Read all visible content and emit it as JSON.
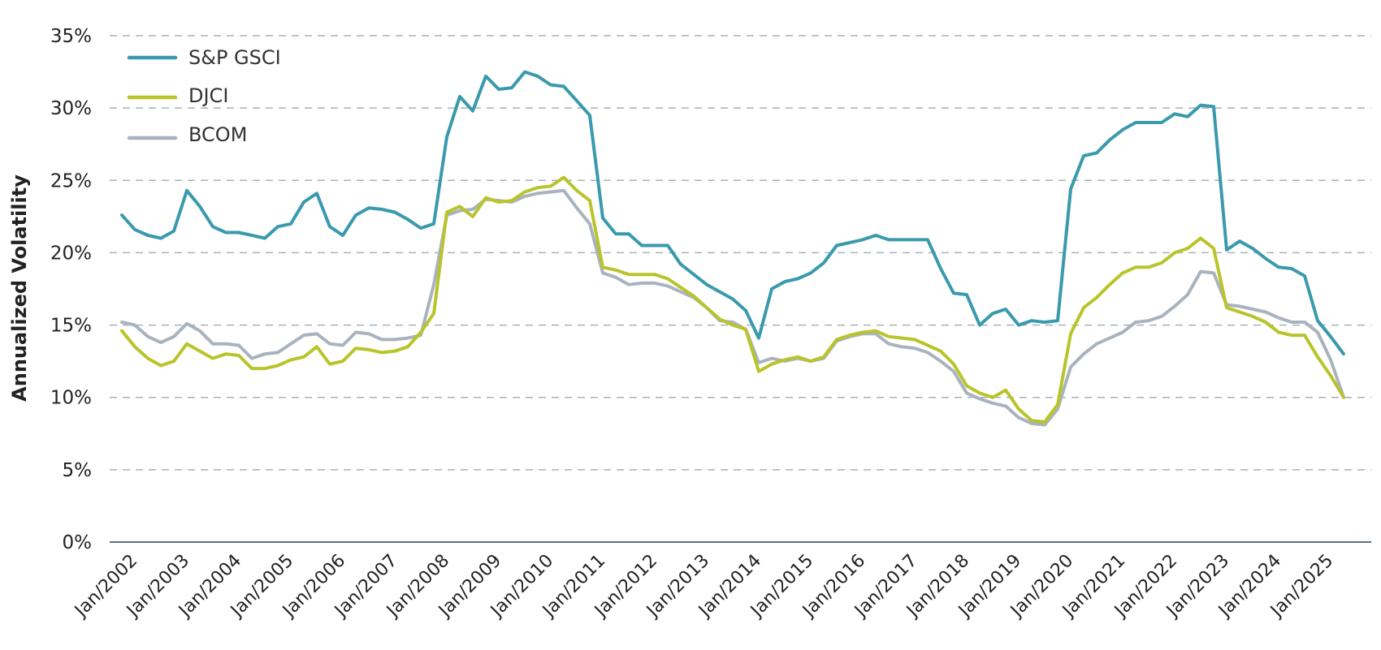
{
  "chart_data": {
    "type": "line",
    "title": "",
    "xlabel": "",
    "ylabel": "Annualized Volatility",
    "ylim": [
      0,
      35
    ],
    "yticks": [
      "0%",
      "5%",
      "10%",
      "15%",
      "20%",
      "25%",
      "30%",
      "35%"
    ],
    "ytick_values": [
      0,
      5,
      10,
      15,
      20,
      25,
      30,
      35
    ],
    "xticks": [
      "Jan/2002",
      "Jan/2003",
      "Jan/2004",
      "Jan/2005",
      "Jan/2006",
      "Jan/2007",
      "Jan/2008",
      "Jan/2009",
      "Jan/2010",
      "Jan/2011",
      "Jan/2012",
      "Jan/2013",
      "Jan/2014",
      "Jan/2015",
      "Jan/2016",
      "Jan/2017",
      "Jan/2018",
      "Jan/2019",
      "Jan/2020",
      "Jan/2021",
      "Jan/2022",
      "Jan/2023",
      "Jan/2024",
      "Jan/2025"
    ],
    "xtick_values": [
      2002,
      2003,
      2004,
      2005,
      2006,
      2007,
      2008,
      2009,
      2010,
      2011,
      2012,
      2013,
      2014,
      2015,
      2016,
      2017,
      2018,
      2019,
      2020,
      2021,
      2022,
      2023,
      2024,
      2025
    ],
    "xlim": [
      2001.8,
      2025.6
    ],
    "grid": true,
    "legend_position": "top-left",
    "x": [
      2002.0,
      2002.25,
      2002.5,
      2002.75,
      2003.0,
      2003.25,
      2003.5,
      2003.75,
      2004.0,
      2004.25,
      2004.5,
      2004.75,
      2005.0,
      2005.25,
      2005.5,
      2005.75,
      2006.0,
      2006.25,
      2006.5,
      2006.75,
      2007.0,
      2007.25,
      2007.5,
      2007.75,
      2008.0,
      2008.25,
      2008.5,
      2008.75,
      2009.0,
      2009.25,
      2009.5,
      2009.75,
      2010.0,
      2010.25,
      2010.5,
      2010.75,
      2011.0,
      2011.25,
      2011.5,
      2011.75,
      2012.0,
      2012.25,
      2012.5,
      2012.75,
      2013.0,
      2013.25,
      2013.5,
      2013.75,
      2014.0,
      2014.25,
      2014.5,
      2014.75,
      2015.0,
      2015.25,
      2015.5,
      2015.75,
      2016.0,
      2016.25,
      2016.5,
      2016.75,
      2017.0,
      2017.25,
      2017.5,
      2017.75,
      2018.0,
      2018.25,
      2018.5,
      2018.75,
      2019.0,
      2019.25,
      2019.5,
      2019.75,
      2020.0,
      2020.25,
      2020.5,
      2020.75,
      2021.0,
      2021.25,
      2021.5,
      2021.75,
      2022.0,
      2022.25,
      2022.5,
      2022.75,
      2023.0,
      2023.25,
      2023.5,
      2023.75,
      2024.0,
      2024.25,
      2024.5,
      2024.75,
      2025.0,
      2025.25,
      2025.5
    ],
    "series": [
      {
        "name": "S&P GSCI",
        "color": "#3a9aad",
        "values": [
          22.6,
          21.6,
          21.2,
          21.0,
          21.5,
          24.3,
          23.2,
          21.8,
          21.4,
          21.4,
          21.2,
          21.0,
          21.8,
          22.0,
          23.5,
          24.1,
          21.8,
          21.2,
          22.6,
          23.1,
          23.0,
          22.8,
          22.3,
          21.7,
          22.0,
          28.0,
          30.8,
          29.8,
          32.2,
          31.3,
          31.4,
          32.5,
          32.2,
          31.6,
          31.5,
          30.5,
          29.5,
          22.4,
          21.3,
          21.3,
          20.5,
          20.5,
          20.5,
          19.2,
          18.5,
          17.8,
          17.3,
          16.8,
          16.0,
          14.1,
          17.5,
          18.0,
          18.2,
          18.6,
          19.3,
          20.5,
          20.7,
          20.9,
          21.2,
          20.9,
          20.9,
          20.9,
          20.9,
          18.9,
          17.2,
          17.1,
          15.0,
          15.8,
          16.1,
          15.0,
          15.3,
          15.2,
          15.3,
          24.4,
          26.7,
          26.9,
          27.8,
          28.5,
          29.0,
          29.0,
          29.0,
          29.6,
          29.4,
          30.2,
          30.1,
          20.2,
          20.8,
          20.3,
          19.6,
          19.0,
          18.9,
          18.4,
          15.3,
          14.2,
          13.0
        ]
      },
      {
        "name": "DJCI",
        "color": "#b8c42a",
        "values": [
          14.6,
          13.5,
          12.7,
          12.2,
          12.5,
          13.7,
          13.2,
          12.7,
          13.0,
          12.9,
          12.0,
          12.0,
          12.2,
          12.6,
          12.8,
          13.5,
          12.3,
          12.5,
          13.4,
          13.3,
          13.1,
          13.2,
          13.5,
          14.5,
          15.8,
          22.8,
          23.2,
          22.5,
          23.8,
          23.5,
          23.6,
          24.2,
          24.5,
          24.6,
          25.2,
          24.3,
          23.6,
          19.0,
          18.8,
          18.5,
          18.5,
          18.5,
          18.2,
          17.6,
          17.0,
          16.2,
          15.4,
          15.0,
          14.7,
          11.8,
          12.3,
          12.6,
          12.8,
          12.5,
          12.8,
          14.0,
          14.3,
          14.5,
          14.6,
          14.2,
          14.1,
          14.0,
          13.6,
          13.2,
          12.3,
          10.8,
          10.3,
          10.0,
          10.5,
          9.2,
          8.4,
          8.3,
          9.5,
          14.4,
          16.2,
          16.9,
          17.8,
          18.6,
          19.0,
          19.0,
          19.3,
          20.0,
          20.3,
          21.0,
          20.3,
          16.2,
          15.9,
          15.6,
          15.2,
          14.5,
          14.3,
          14.3,
          12.8,
          11.5,
          10.0
        ]
      },
      {
        "name": "BCOM",
        "color": "#a9b3be",
        "values": [
          15.2,
          15.0,
          14.2,
          13.8,
          14.2,
          15.1,
          14.6,
          13.7,
          13.7,
          13.6,
          12.7,
          13.0,
          13.1,
          13.7,
          14.3,
          14.4,
          13.7,
          13.6,
          14.5,
          14.4,
          14.0,
          14.0,
          14.1,
          14.3,
          17.8,
          22.6,
          22.9,
          23.0,
          23.7,
          23.6,
          23.5,
          23.9,
          24.1,
          24.2,
          24.3,
          23.1,
          22.0,
          18.6,
          18.3,
          17.8,
          17.9,
          17.9,
          17.7,
          17.3,
          16.9,
          16.2,
          15.3,
          15.2,
          14.7,
          12.4,
          12.7,
          12.5,
          12.7,
          12.5,
          12.7,
          13.9,
          14.2,
          14.4,
          14.4,
          13.7,
          13.5,
          13.4,
          13.1,
          12.5,
          11.8,
          10.3,
          9.9,
          9.6,
          9.4,
          8.6,
          8.2,
          8.1,
          9.2,
          12.1,
          13.0,
          13.7,
          14.1,
          14.5,
          15.2,
          15.3,
          15.6,
          16.3,
          17.1,
          18.7,
          18.6,
          16.4,
          16.3,
          16.1,
          15.9,
          15.5,
          15.2,
          15.2,
          14.5,
          12.6,
          10.0
        ]
      }
    ]
  },
  "legend": {
    "items": [
      {
        "label": "S&P GSCI",
        "color": "#3a9aad"
      },
      {
        "label": "DJCI",
        "color": "#b8c42a"
      },
      {
        "label": "BCOM",
        "color": "#a9b3be"
      }
    ]
  }
}
